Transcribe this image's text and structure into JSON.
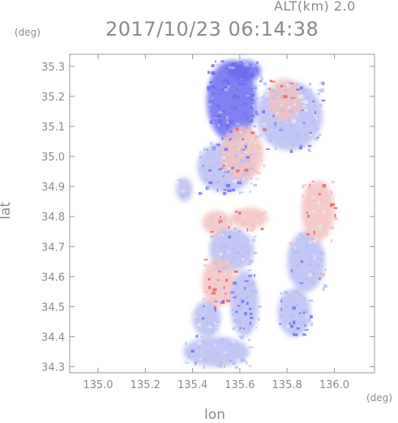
{
  "header": {
    "altitude_text": "ALT(km) 2.0",
    "timestamp": "2017/10/23 06:14:38"
  },
  "chart_data": {
    "type": "heatmap",
    "title": "2017/10/23 06:14:38",
    "xlabel": "lon",
    "ylabel": "lat",
    "x_unit": "(deg)",
    "y_unit": "(deg)",
    "xlim": [
      134.88,
      136.17
    ],
    "ylim": [
      34.28,
      35.34
    ],
    "xticks": [
      135.0,
      135.2,
      135.4,
      135.6,
      135.8,
      136.0
    ],
    "xtick_labels": [
      "135.0",
      "135.2",
      "135.4",
      "135.6",
      "135.8",
      "136.0"
    ],
    "yticks": [
      34.3,
      34.4,
      34.5,
      34.6,
      34.7,
      34.8,
      34.9,
      35.0,
      35.1,
      35.2,
      35.3
    ],
    "ytick_labels": [
      "34.3",
      "34.4",
      "34.5",
      "34.6",
      "34.7",
      "34.8",
      "34.9",
      "35.0",
      "35.1",
      "35.2",
      "35.3"
    ],
    "grid": false,
    "colors": {
      "strong_negative": "#6b6bf0",
      "weak_negative": "#b9bdf3",
      "neutral": "#e6e6f5",
      "weak_positive": "#f3c2c2",
      "strong_positive": "#ee5a5a",
      "axis": "#9a9a9a"
    },
    "regions": [
      {
        "x": [
          135.46,
          135.67
        ],
        "y": [
          35.05,
          35.32
        ],
        "value": -0.85
      },
      {
        "x": [
          135.67,
          135.95
        ],
        "y": [
          35.02,
          35.25
        ],
        "value": -0.35
      },
      {
        "x": [
          135.72,
          135.86
        ],
        "y": [
          35.12,
          35.26
        ],
        "value": 0.4
      },
      {
        "x": [
          135.42,
          135.66
        ],
        "y": [
          34.88,
          35.05
        ],
        "value": -0.55
      },
      {
        "x": [
          135.52,
          135.7
        ],
        "y": [
          34.92,
          35.1
        ],
        "value": 0.3
      },
      {
        "x": [
          135.56,
          135.72
        ],
        "y": [
          34.76,
          34.83
        ],
        "value": 0.45
      },
      {
        "x": [
          135.44,
          135.56
        ],
        "y": [
          34.74,
          34.82
        ],
        "value": 0.3
      },
      {
        "x": [
          135.47,
          135.66
        ],
        "y": [
          34.62,
          34.76
        ],
        "value": -0.3
      },
      {
        "x": [
          135.44,
          135.58
        ],
        "y": [
          34.5,
          34.66
        ],
        "value": 0.35
      },
      {
        "x": [
          135.56,
          135.68
        ],
        "y": [
          34.4,
          34.62
        ],
        "value": -0.6
      },
      {
        "x": [
          135.4,
          135.52
        ],
        "y": [
          34.4,
          34.52
        ],
        "value": -0.4
      },
      {
        "x": [
          135.36,
          135.64
        ],
        "y": [
          34.3,
          34.4
        ],
        "value": -0.3
      },
      {
        "x": [
          135.8,
          135.96
        ],
        "y": [
          34.55,
          34.75
        ],
        "value": -0.3
      },
      {
        "x": [
          135.86,
          136.0
        ],
        "y": [
          34.72,
          34.92
        ],
        "value": 0.35
      },
      {
        "x": [
          135.76,
          135.9
        ],
        "y": [
          34.4,
          34.56
        ],
        "value": -0.45
      },
      {
        "x": [
          135.33,
          135.4
        ],
        "y": [
          34.85,
          34.93
        ],
        "value": -0.2
      },
      {
        "x": [
          135.55,
          135.69
        ],
        "y": [
          35.25,
          35.32
        ],
        "value": -0.7
      }
    ]
  }
}
